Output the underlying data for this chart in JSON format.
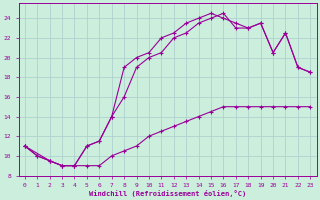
{
  "xlabel": "Windchill (Refroidissement éolien,°C)",
  "background_color": "#cceedd",
  "grid_color": "#aacccc",
  "line_color": "#990099",
  "spine_color": "#990099",
  "xlim": [
    -0.5,
    23.5
  ],
  "ylim": [
    8,
    25.5
  ],
  "xticks": [
    0,
    1,
    2,
    3,
    4,
    5,
    6,
    7,
    8,
    9,
    10,
    11,
    12,
    13,
    14,
    15,
    16,
    17,
    18,
    19,
    20,
    21,
    22,
    23
  ],
  "yticks": [
    8,
    10,
    12,
    14,
    16,
    18,
    20,
    22,
    24
  ],
  "curve1_x": [
    0,
    1,
    2,
    3,
    4,
    5,
    6,
    7,
    8,
    9,
    10,
    11,
    12,
    13,
    14,
    15,
    16,
    17,
    18,
    19,
    20,
    21,
    22,
    23
  ],
  "curve1_y": [
    11,
    10,
    9.5,
    9,
    9,
    9,
    9,
    10,
    10.5,
    11,
    12,
    12.5,
    13,
    13.5,
    14,
    14.5,
    15,
    15,
    15,
    15,
    15,
    15,
    15,
    15
  ],
  "curve2_x": [
    0,
    1,
    2,
    3,
    4,
    5,
    6,
    7,
    8,
    9,
    10,
    11,
    12,
    13,
    14,
    15,
    16,
    17,
    18,
    19,
    20,
    21,
    22,
    23
  ],
  "curve2_y": [
    11,
    10,
    9.5,
    9,
    9,
    11,
    11.5,
    14,
    19,
    20,
    20.5,
    22,
    22.5,
    23.5,
    24,
    24.5,
    24,
    23.5,
    23,
    23.5,
    20.5,
    22.5,
    19,
    18.5
  ],
  "curve3_x": [
    0,
    2,
    3,
    4,
    5,
    6,
    7,
    8,
    9,
    10,
    11,
    12,
    13,
    14,
    15,
    16,
    17,
    18,
    19,
    20,
    21,
    22,
    23
  ],
  "curve3_y": [
    11,
    9.5,
    9,
    9,
    11,
    11.5,
    14,
    16,
    19,
    20,
    20.5,
    22,
    22.5,
    23.5,
    24,
    24.5,
    23,
    23,
    23.5,
    20.5,
    22.5,
    19,
    18.5
  ]
}
